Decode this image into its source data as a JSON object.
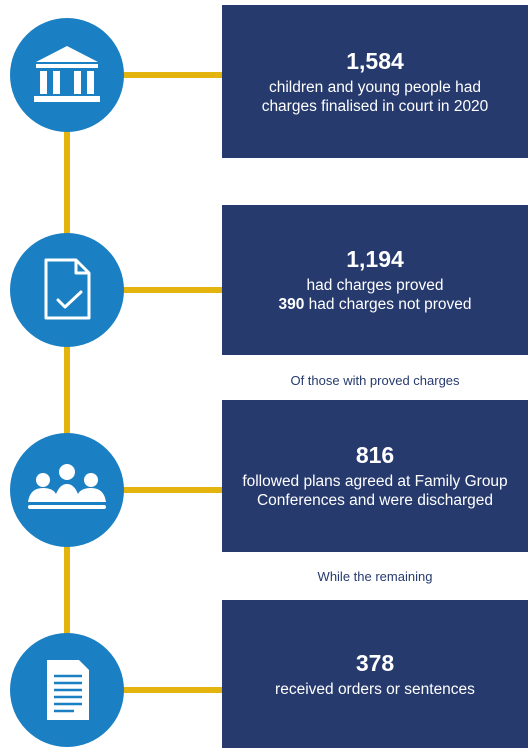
{
  "steps": [
    {
      "number": "1,584",
      "text": "children and young people had charges finalised in court in 2020"
    },
    {
      "number": "1,194",
      "text": "had charges proved",
      "sub_number": "390",
      "sub_text": "had charges not proved"
    },
    {
      "number": "816",
      "text": "followed plans agreed at Family Group Conferences and were discharged"
    },
    {
      "number": "378",
      "text": "received orders or sentences"
    }
  ],
  "captions": [
    "Of those with proved charges",
    "While the remaining"
  ]
}
